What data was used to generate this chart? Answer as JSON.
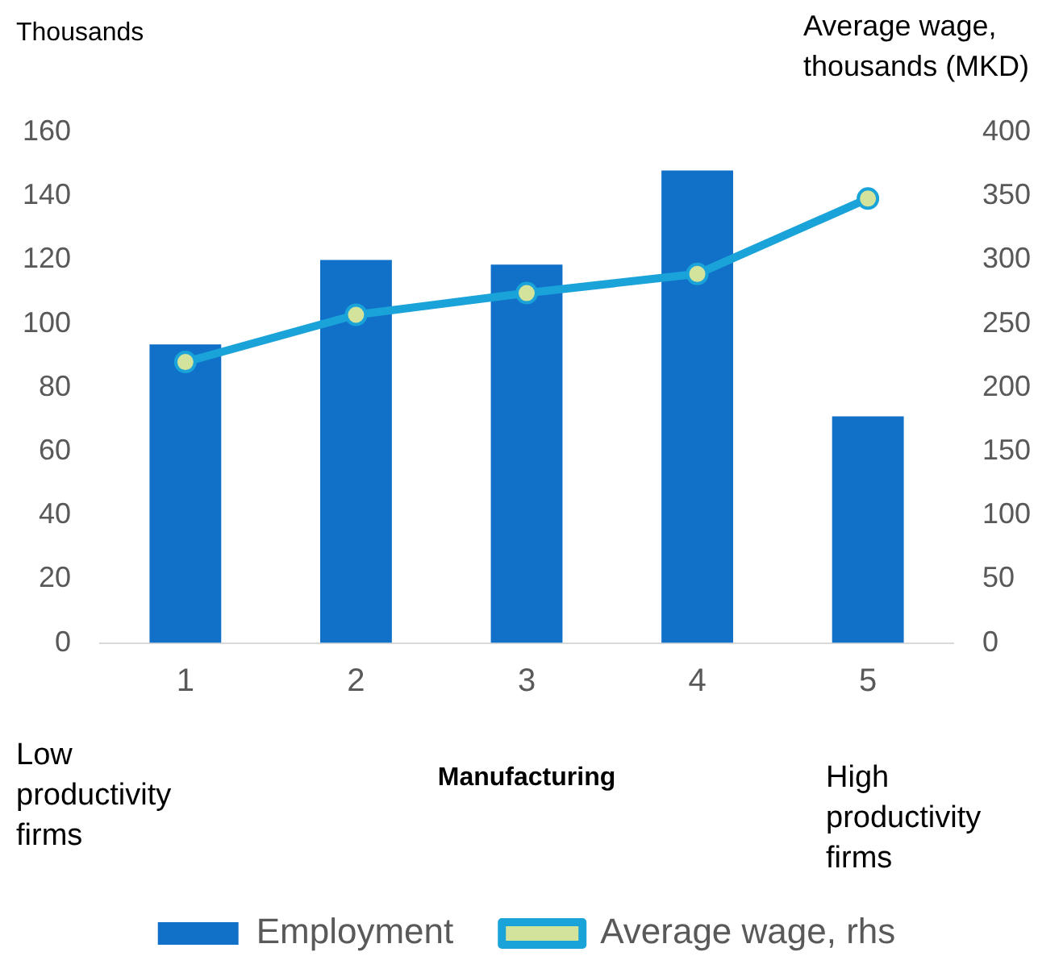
{
  "chart_data": {
    "type": "bar",
    "categories": [
      "1",
      "2",
      "3",
      "4",
      "5"
    ],
    "ylabel": "Thousands",
    "y2label": "Average wage, thousands (MKD)",
    "xlabel": "Manufacturing",
    "series": [
      {
        "name": "Employment",
        "color": "#1170c8",
        "values": [
          93.5,
          120,
          118.5,
          148,
          71
        ]
      },
      {
        "name": "Average wage, rhs",
        "type": "line",
        "axis": "y2",
        "color": "#1aa3d9",
        "values": [
          220,
          257,
          274,
          289,
          348
        ]
      }
    ],
    "ylim": [
      0,
      160
    ],
    "yticks": [
      0,
      20,
      40,
      60,
      80,
      100,
      120,
      140,
      160
    ],
    "y2lim": [
      0,
      400
    ],
    "y2ticks": [
      0,
      50,
      100,
      150,
      200,
      250,
      300,
      350,
      400
    ],
    "marker": "circle",
    "grid": false,
    "legend": "bottom",
    "annotations": [
      "Low productivity firms",
      "High productivity firms"
    ]
  }
}
